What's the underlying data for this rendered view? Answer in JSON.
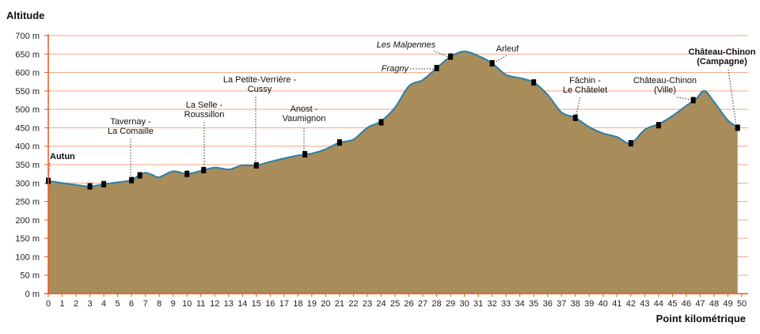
{
  "chart_data": {
    "type": "area",
    "ylabel": "Altitude",
    "xlabel": "Point kilométrique",
    "ylim": [
      0,
      700
    ],
    "xlim": [
      0,
      50
    ],
    "y_ticks": [
      {
        "value": 0,
        "label": "0 m"
      },
      {
        "value": 50,
        "label": "50 m"
      },
      {
        "value": 100,
        "label": "100 m"
      },
      {
        "value": 150,
        "label": "150 m"
      },
      {
        "value": 200,
        "label": "200 m"
      },
      {
        "value": 250,
        "label": "250 m"
      },
      {
        "value": 300,
        "label": "300 m"
      },
      {
        "value": 350,
        "label": "350 m"
      },
      {
        "value": 400,
        "label": "400 m"
      },
      {
        "value": 450,
        "label": "450 m"
      },
      {
        "value": 500,
        "label": "500 m"
      },
      {
        "value": 550,
        "label": "550 m"
      },
      {
        "value": 600,
        "label": "600 m"
      },
      {
        "value": 650,
        "label": "650 m"
      },
      {
        "value": 700,
        "label": "700 m"
      }
    ],
    "x_ticks": [
      "0",
      "1",
      "2",
      "3",
      "4",
      "5",
      "6",
      "7",
      "8",
      "9",
      "10",
      "11",
      "12",
      "13",
      "14",
      "15",
      "16",
      "17",
      "18",
      "19",
      "20",
      "21",
      "22",
      "23",
      "24",
      "25",
      "26",
      "27",
      "28",
      "29",
      "30",
      "31",
      "32",
      "33",
      "34",
      "35",
      "36",
      "37",
      "38",
      "39",
      "40",
      "41",
      "42",
      "43",
      "44",
      "45",
      "46",
      "47",
      "48",
      "49",
      "50"
    ],
    "grid": "horizontal",
    "colors": {
      "fill": "#a88c5a",
      "line": "#2d7fa6",
      "grid": "#f4a582",
      "axis": "#e8581f",
      "marker": "#000000"
    },
    "profile": [
      {
        "x": 0,
        "y": 306
      },
      {
        "x": 1,
        "y": 300
      },
      {
        "x": 2,
        "y": 295
      },
      {
        "x": 3,
        "y": 291
      },
      {
        "x": 4,
        "y": 297
      },
      {
        "x": 5,
        "y": 302
      },
      {
        "x": 6,
        "y": 308
      },
      {
        "x": 6.5,
        "y": 320
      },
      {
        "x": 7,
        "y": 328
      },
      {
        "x": 7.5,
        "y": 322
      },
      {
        "x": 8,
        "y": 316
      },
      {
        "x": 9,
        "y": 332
      },
      {
        "x": 10,
        "y": 325
      },
      {
        "x": 11,
        "y": 333
      },
      {
        "x": 12,
        "y": 342
      },
      {
        "x": 13,
        "y": 337
      },
      {
        "x": 14,
        "y": 348
      },
      {
        "x": 15,
        "y": 348
      },
      {
        "x": 16,
        "y": 358
      },
      {
        "x": 17,
        "y": 367
      },
      {
        "x": 18,
        "y": 375
      },
      {
        "x": 19,
        "y": 380
      },
      {
        "x": 20,
        "y": 392
      },
      {
        "x": 21,
        "y": 410
      },
      {
        "x": 22,
        "y": 418
      },
      {
        "x": 23,
        "y": 450
      },
      {
        "x": 24,
        "y": 468
      },
      {
        "x": 25,
        "y": 505
      },
      {
        "x": 26,
        "y": 563
      },
      {
        "x": 27,
        "y": 580
      },
      {
        "x": 28,
        "y": 612
      },
      {
        "x": 29,
        "y": 643
      },
      {
        "x": 30,
        "y": 657
      },
      {
        "x": 31,
        "y": 645
      },
      {
        "x": 32,
        "y": 625
      },
      {
        "x": 33,
        "y": 594
      },
      {
        "x": 34,
        "y": 585
      },
      {
        "x": 35,
        "y": 573
      },
      {
        "x": 36,
        "y": 540
      },
      {
        "x": 37,
        "y": 492
      },
      {
        "x": 38,
        "y": 477
      },
      {
        "x": 39,
        "y": 452
      },
      {
        "x": 40,
        "y": 435
      },
      {
        "x": 41,
        "y": 425
      },
      {
        "x": 42,
        "y": 408
      },
      {
        "x": 43,
        "y": 445
      },
      {
        "x": 44,
        "y": 460
      },
      {
        "x": 45,
        "y": 482
      },
      {
        "x": 46,
        "y": 510
      },
      {
        "x": 46.7,
        "y": 528
      },
      {
        "x": 47.3,
        "y": 550
      },
      {
        "x": 48,
        "y": 520
      },
      {
        "x": 49,
        "y": 470
      },
      {
        "x": 49.7,
        "y": 452
      }
    ],
    "markers": [
      {
        "x": 0,
        "y": 306
      },
      {
        "x": 3,
        "y": 291
      },
      {
        "x": 4,
        "y": 297
      },
      {
        "x": 6,
        "y": 308
      },
      {
        "x": 6.6,
        "y": 321
      },
      {
        "x": 10,
        "y": 325
      },
      {
        "x": 11.2,
        "y": 335
      },
      {
        "x": 15,
        "y": 348
      },
      {
        "x": 18.5,
        "y": 378
      },
      {
        "x": 21,
        "y": 410
      },
      {
        "x": 24,
        "y": 465
      },
      {
        "x": 28,
        "y": 612
      },
      {
        "x": 29,
        "y": 643
      },
      {
        "x": 32,
        "y": 625
      },
      {
        "x": 35,
        "y": 573
      },
      {
        "x": 38,
        "y": 477
      },
      {
        "x": 42,
        "y": 408
      },
      {
        "x": 44,
        "y": 457
      },
      {
        "x": 46.5,
        "y": 525
      },
      {
        "x": 49.7,
        "y": 450
      }
    ],
    "annotations": [
      {
        "lines": [
          "Autun"
        ],
        "style": "bold",
        "x": 0,
        "y": 306
      },
      {
        "lines": [
          "Tavernay -",
          "La Comaille"
        ],
        "style": "normal",
        "x": 6,
        "y": 308
      },
      {
        "lines": [
          "La Selle -",
          "Roussillon"
        ],
        "style": "normal",
        "x": 11.2,
        "y": 335
      },
      {
        "lines": [
          "La Petite-Verrière -",
          "Cussy"
        ],
        "style": "normal",
        "x": 15,
        "y": 348
      },
      {
        "lines": [
          "Anost -",
          "Vaumignon"
        ],
        "style": "normal",
        "x": 18.5,
        "y": 378
      },
      {
        "lines": [
          "Les Malpennes"
        ],
        "style": "italic",
        "x": 29,
        "y": 643
      },
      {
        "lines": [
          "Fragny"
        ],
        "style": "italic",
        "x": 28,
        "y": 612
      },
      {
        "lines": [
          "Arleuf"
        ],
        "style": "normal",
        "x": 32,
        "y": 625
      },
      {
        "lines": [
          "Fâchin -",
          "Le Châtelet"
        ],
        "style": "normal",
        "x": 38,
        "y": 477
      },
      {
        "lines": [
          "Château-Chinon",
          "(Ville)"
        ],
        "style": "normal",
        "x": 46.5,
        "y": 525
      },
      {
        "lines": [
          "Château-Chinon",
          "(Campagne)"
        ],
        "style": "bold",
        "x": 49.7,
        "y": 450
      }
    ]
  }
}
